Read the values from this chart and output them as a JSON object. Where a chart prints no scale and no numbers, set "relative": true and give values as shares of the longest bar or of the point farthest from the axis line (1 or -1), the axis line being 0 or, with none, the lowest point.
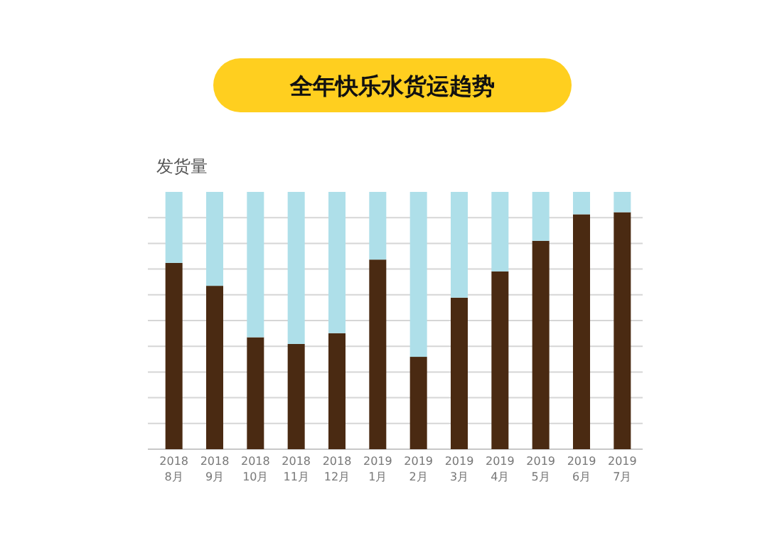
{
  "chart_data": {
    "type": "bar",
    "title": "全年快乐水货运趋势",
    "ylabel": "发货量",
    "relative": true,
    "stacked": true,
    "grid": "y",
    "categories": [
      "2018\n8月",
      "2018\n9月",
      "2018\n10月",
      "2018\n11月",
      "2018\n12月",
      "2019\n1月",
      "2019\n2月",
      "2019\n3月",
      "2019\n4月",
      "2019\n5月",
      "2019\n6月",
      "2019\n7月"
    ],
    "series": [
      {
        "color": "#4a2a12",
        "values": [
          0.724,
          0.635,
          0.435,
          0.409,
          0.451,
          0.737,
          0.359,
          0.589,
          0.691,
          0.81,
          0.913,
          0.921
        ]
      },
      {
        "color": "#aedfe9",
        "values": [
          0.276,
          0.365,
          0.565,
          0.591,
          0.549,
          0.263,
          0.641,
          0.411,
          0.309,
          0.19,
          0.087,
          0.079
        ]
      }
    ]
  }
}
